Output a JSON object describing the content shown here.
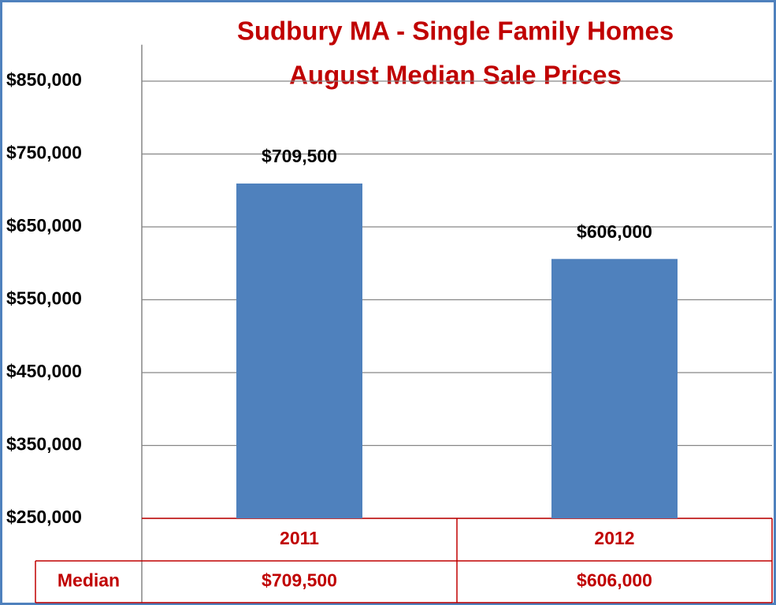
{
  "chart_data": {
    "type": "bar",
    "title": "Sudbury MA - Single Family Homes",
    "subtitle": "August Median Sale Prices",
    "categories": [
      "2011",
      "2012"
    ],
    "series": [
      {
        "name": "Median",
        "color": "#4f81bd",
        "values": [
          709500,
          606000
        ],
        "value_labels": [
          "$709,500",
          "$606,000"
        ]
      }
    ],
    "ylim": [
      250000,
      900000
    ],
    "yticks": [
      {
        "value": 250000,
        "label": "$250,000"
      },
      {
        "value": 350000,
        "label": "$350,000"
      },
      {
        "value": 450000,
        "label": "$450,000"
      },
      {
        "value": 550000,
        "label": "$550,000"
      },
      {
        "value": 650000,
        "label": "$650,000"
      },
      {
        "value": 750000,
        "label": "$750,000"
      },
      {
        "value": 850000,
        "label": "$850,000"
      }
    ],
    "grid": true
  }
}
